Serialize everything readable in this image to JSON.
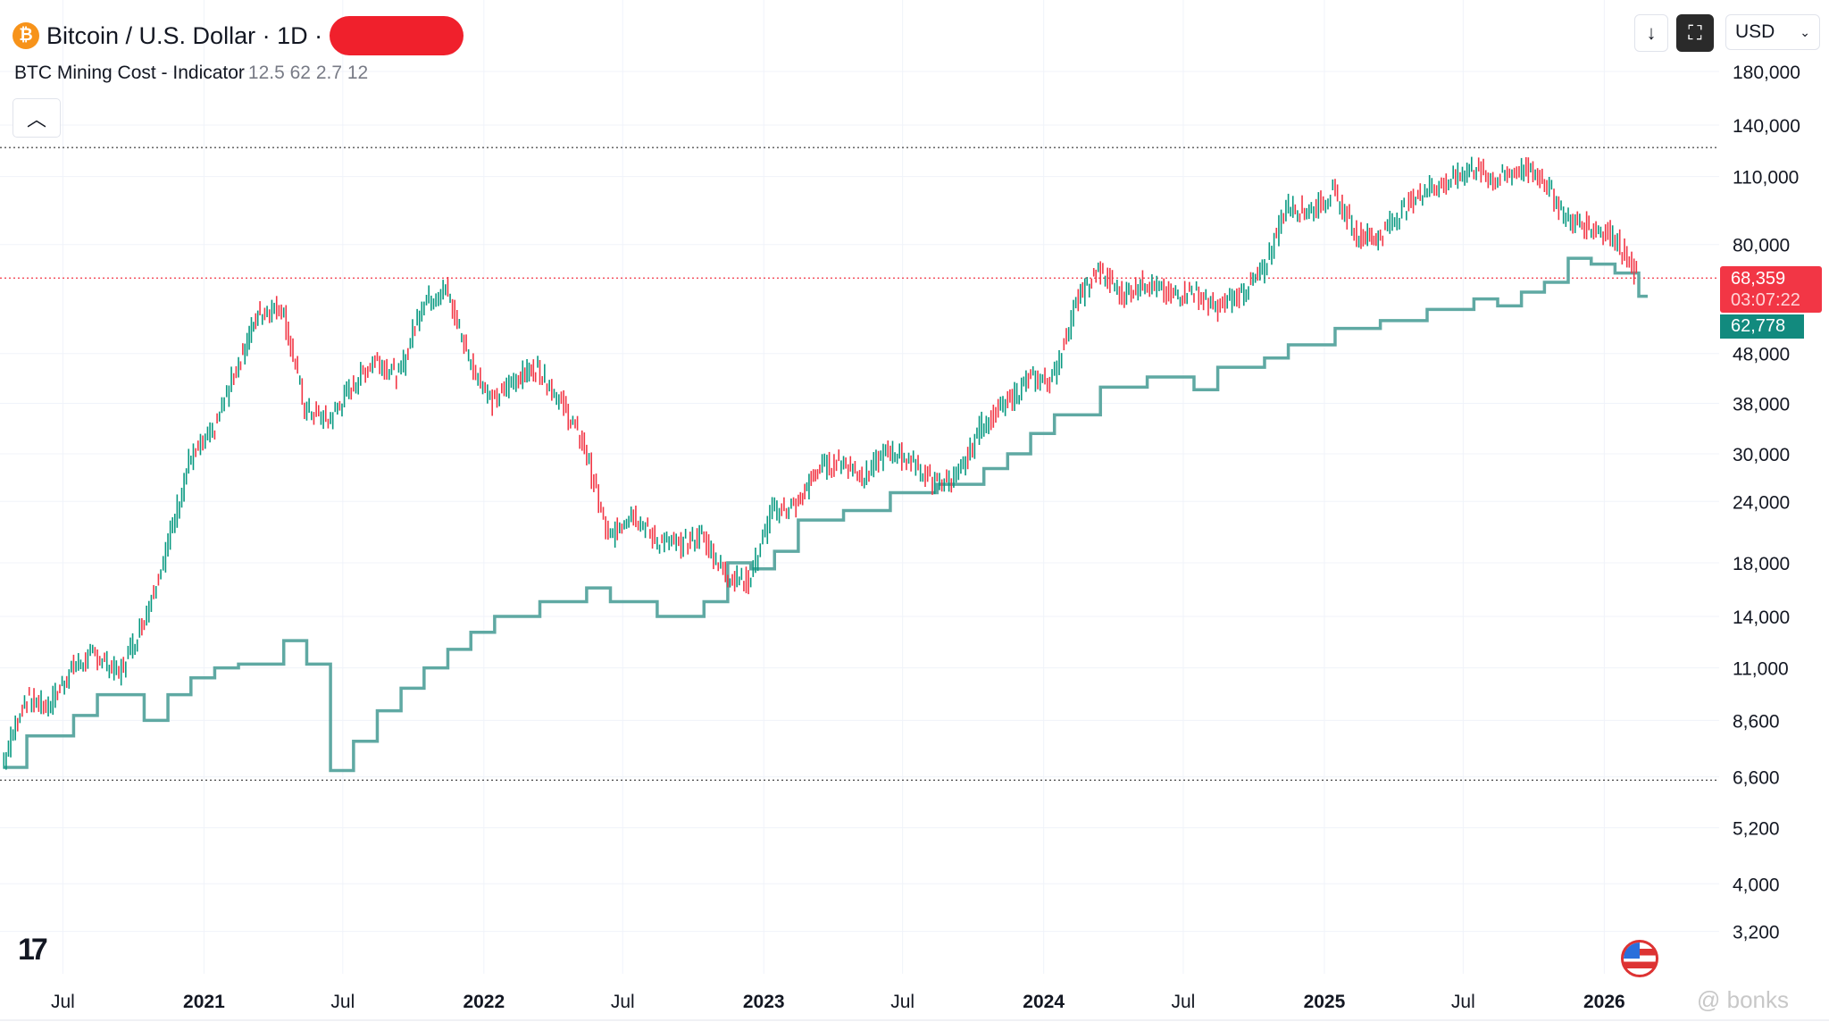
{
  "header": {
    "coin_icon": "bitcoin-icon",
    "title": "Bitcoin / U.S. Dollar · 1D ·"
  },
  "indicator": {
    "name": "BTC Mining Cost - Indicator",
    "params": "12.5 62 2.7 12"
  },
  "toolbar": {
    "down_icon": "arrow-down-icon",
    "fullscreen_icon": "fullscreen-icon",
    "currency": "USD"
  },
  "badges": {
    "price": "68,359",
    "countdown": "03:07:22",
    "mining_cost": "62,778"
  },
  "watermark": "@ bonks",
  "colors": {
    "up": "#089981",
    "down": "#f23645",
    "mining": "#5fa9a3",
    "badge_red": "#f23645",
    "badge_green": "#128a7e"
  },
  "chart_data": {
    "type": "line",
    "scale": "log",
    "grid": true,
    "ylim": [
      2900,
      200000
    ],
    "xlim": [
      "2020-04-01",
      "2026-02-20"
    ],
    "y_ticks": [
      "180,000",
      "140,000",
      "110,000",
      "80,000",
      "48,000",
      "38,000",
      "30,000",
      "24,000",
      "18,000",
      "14,000",
      "11,000",
      "8,600",
      "6,600",
      "5,200",
      "4,000",
      "3,200"
    ],
    "y_tick_values": [
      180000,
      140000,
      110000,
      80000,
      48000,
      38000,
      30000,
      24000,
      18000,
      14000,
      11000,
      8600,
      6600,
      5200,
      4000,
      3200
    ],
    "x_ticks": [
      {
        "label": "Jul",
        "date": "2020-07-01",
        "bold": false
      },
      {
        "label": "2021",
        "date": "2021-01-01",
        "bold": true
      },
      {
        "label": "Jul",
        "date": "2021-07-01",
        "bold": false
      },
      {
        "label": "2022",
        "date": "2022-01-01",
        "bold": true
      },
      {
        "label": "Jul",
        "date": "2022-07-01",
        "bold": false
      },
      {
        "label": "2023",
        "date": "2023-01-01",
        "bold": true
      },
      {
        "label": "Jul",
        "date": "2023-07-01",
        "bold": false
      },
      {
        "label": "2024",
        "date": "2024-01-01",
        "bold": true
      },
      {
        "label": "Jul",
        "date": "2024-07-01",
        "bold": false
      },
      {
        "label": "2025",
        "date": "2025-01-01",
        "bold": true
      },
      {
        "label": "Jul",
        "date": "2025-07-01",
        "bold": false
      },
      {
        "label": "2026",
        "date": "2026-01-01",
        "bold": true
      }
    ],
    "reference_lines": [
      126000,
      68359,
      6500
    ],
    "series": [
      {
        "kind": "price",
        "points": [
          [
            "2020-04",
            7000
          ],
          [
            "2020-05",
            9500
          ],
          [
            "2020-06",
            9200
          ],
          [
            "2020-07",
            11000
          ],
          [
            "2020-08",
            11700
          ],
          [
            "2020-09",
            10700
          ],
          [
            "2020-10",
            13500
          ],
          [
            "2020-11",
            19000
          ],
          [
            "2020-12",
            29000
          ],
          [
            "2021-01",
            33000
          ],
          [
            "2021-02",
            45000
          ],
          [
            "2021-03",
            58000
          ],
          [
            "2021-04",
            60000
          ],
          [
            "2021-05",
            37000
          ],
          [
            "2021-06",
            35000
          ],
          [
            "2021-07",
            41000
          ],
          [
            "2021-08",
            47000
          ],
          [
            "2021-09",
            43000
          ],
          [
            "2021-10",
            61000
          ],
          [
            "2021-11",
            65000
          ],
          [
            "2021-12",
            47000
          ],
          [
            "2022-01",
            38000
          ],
          [
            "2022-02",
            43000
          ],
          [
            "2022-03",
            45000
          ],
          [
            "2022-04",
            38000
          ],
          [
            "2022-05",
            31000
          ],
          [
            "2022-06",
            20000
          ],
          [
            "2022-07",
            23000
          ],
          [
            "2022-08",
            20000
          ],
          [
            "2022-09",
            19500
          ],
          [
            "2022-10",
            20500
          ],
          [
            "2022-11",
            17000
          ],
          [
            "2022-12",
            16500
          ],
          [
            "2023-01",
            23000
          ],
          [
            "2023-02",
            23500
          ],
          [
            "2023-03",
            28000
          ],
          [
            "2023-04",
            29000
          ],
          [
            "2023-05",
            27000
          ],
          [
            "2023-06",
            30500
          ],
          [
            "2023-07",
            29000
          ],
          [
            "2023-08",
            26000
          ],
          [
            "2023-09",
            27000
          ],
          [
            "2023-10",
            34500
          ],
          [
            "2023-11",
            37700
          ],
          [
            "2023-12",
            42500
          ],
          [
            "2024-01",
            42500
          ],
          [
            "2024-02",
            61000
          ],
          [
            "2024-03",
            71000
          ],
          [
            "2024-04",
            63000
          ],
          [
            "2024-05",
            67500
          ],
          [
            "2024-06",
            62700
          ],
          [
            "2024-07",
            64600
          ],
          [
            "2024-08",
            59000
          ],
          [
            "2024-09",
            63300
          ],
          [
            "2024-10",
            70000
          ],
          [
            "2024-11",
            96000
          ],
          [
            "2024-12",
            93500
          ],
          [
            "2025-01",
            102000
          ],
          [
            "2025-02",
            84000
          ],
          [
            "2025-03",
            82500
          ],
          [
            "2025-04",
            94000
          ],
          [
            "2025-05",
            104000
          ],
          [
            "2025-06",
            107000
          ],
          [
            "2025-07",
            115000
          ],
          [
            "2025-08",
            108000
          ],
          [
            "2025-09",
            114000
          ],
          [
            "2025-10",
            110000
          ],
          [
            "2025-11",
            90000
          ],
          [
            "2025-12",
            87000
          ],
          [
            "2026-01",
            84000
          ],
          [
            "2026-02",
            68359
          ]
        ]
      },
      {
        "kind": "mining_cost",
        "points": [
          [
            "2020-04",
            6900
          ],
          [
            "2020-05",
            8000
          ],
          [
            "2020-07",
            8800
          ],
          [
            "2020-08",
            9700
          ],
          [
            "2020-10",
            8600
          ],
          [
            "2020-11",
            9700
          ],
          [
            "2020-12",
            10500
          ],
          [
            "2021-01",
            11000
          ],
          [
            "2021-02",
            11200
          ],
          [
            "2021-04",
            12500
          ],
          [
            "2021-05",
            11200
          ],
          [
            "2021-06",
            6800
          ],
          [
            "2021-07",
            7800
          ],
          [
            "2021-08",
            9000
          ],
          [
            "2021-09",
            10000
          ],
          [
            "2021-10",
            11000
          ],
          [
            "2021-11",
            12000
          ],
          [
            "2021-12",
            13000
          ],
          [
            "2022-01",
            14000
          ],
          [
            "2022-03",
            15000
          ],
          [
            "2022-05",
            16000
          ],
          [
            "2022-06",
            15000
          ],
          [
            "2022-08",
            14000
          ],
          [
            "2022-10",
            15000
          ],
          [
            "2022-11",
            18000
          ],
          [
            "2022-12",
            17500
          ],
          [
            "2023-01",
            19000
          ],
          [
            "2023-02",
            22000
          ],
          [
            "2023-04",
            23000
          ],
          [
            "2023-06",
            25000
          ],
          [
            "2023-08",
            26000
          ],
          [
            "2023-10",
            28000
          ],
          [
            "2023-11",
            30000
          ],
          [
            "2023-12",
            33000
          ],
          [
            "2024-01",
            36000
          ],
          [
            "2024-03",
            41000
          ],
          [
            "2024-05",
            43000
          ],
          [
            "2024-07",
            40500
          ],
          [
            "2024-08",
            45000
          ],
          [
            "2024-10",
            47000
          ],
          [
            "2024-11",
            50000
          ],
          [
            "2025-01",
            54000
          ],
          [
            "2025-03",
            56000
          ],
          [
            "2025-05",
            59000
          ],
          [
            "2025-07",
            62000
          ],
          [
            "2025-08",
            60000
          ],
          [
            "2025-09",
            64000
          ],
          [
            "2025-10",
            67000
          ],
          [
            "2025-11",
            75000
          ],
          [
            "2025-12",
            73000
          ],
          [
            "2026-01",
            70000
          ],
          [
            "2026-02",
            62778
          ]
        ]
      }
    ]
  }
}
